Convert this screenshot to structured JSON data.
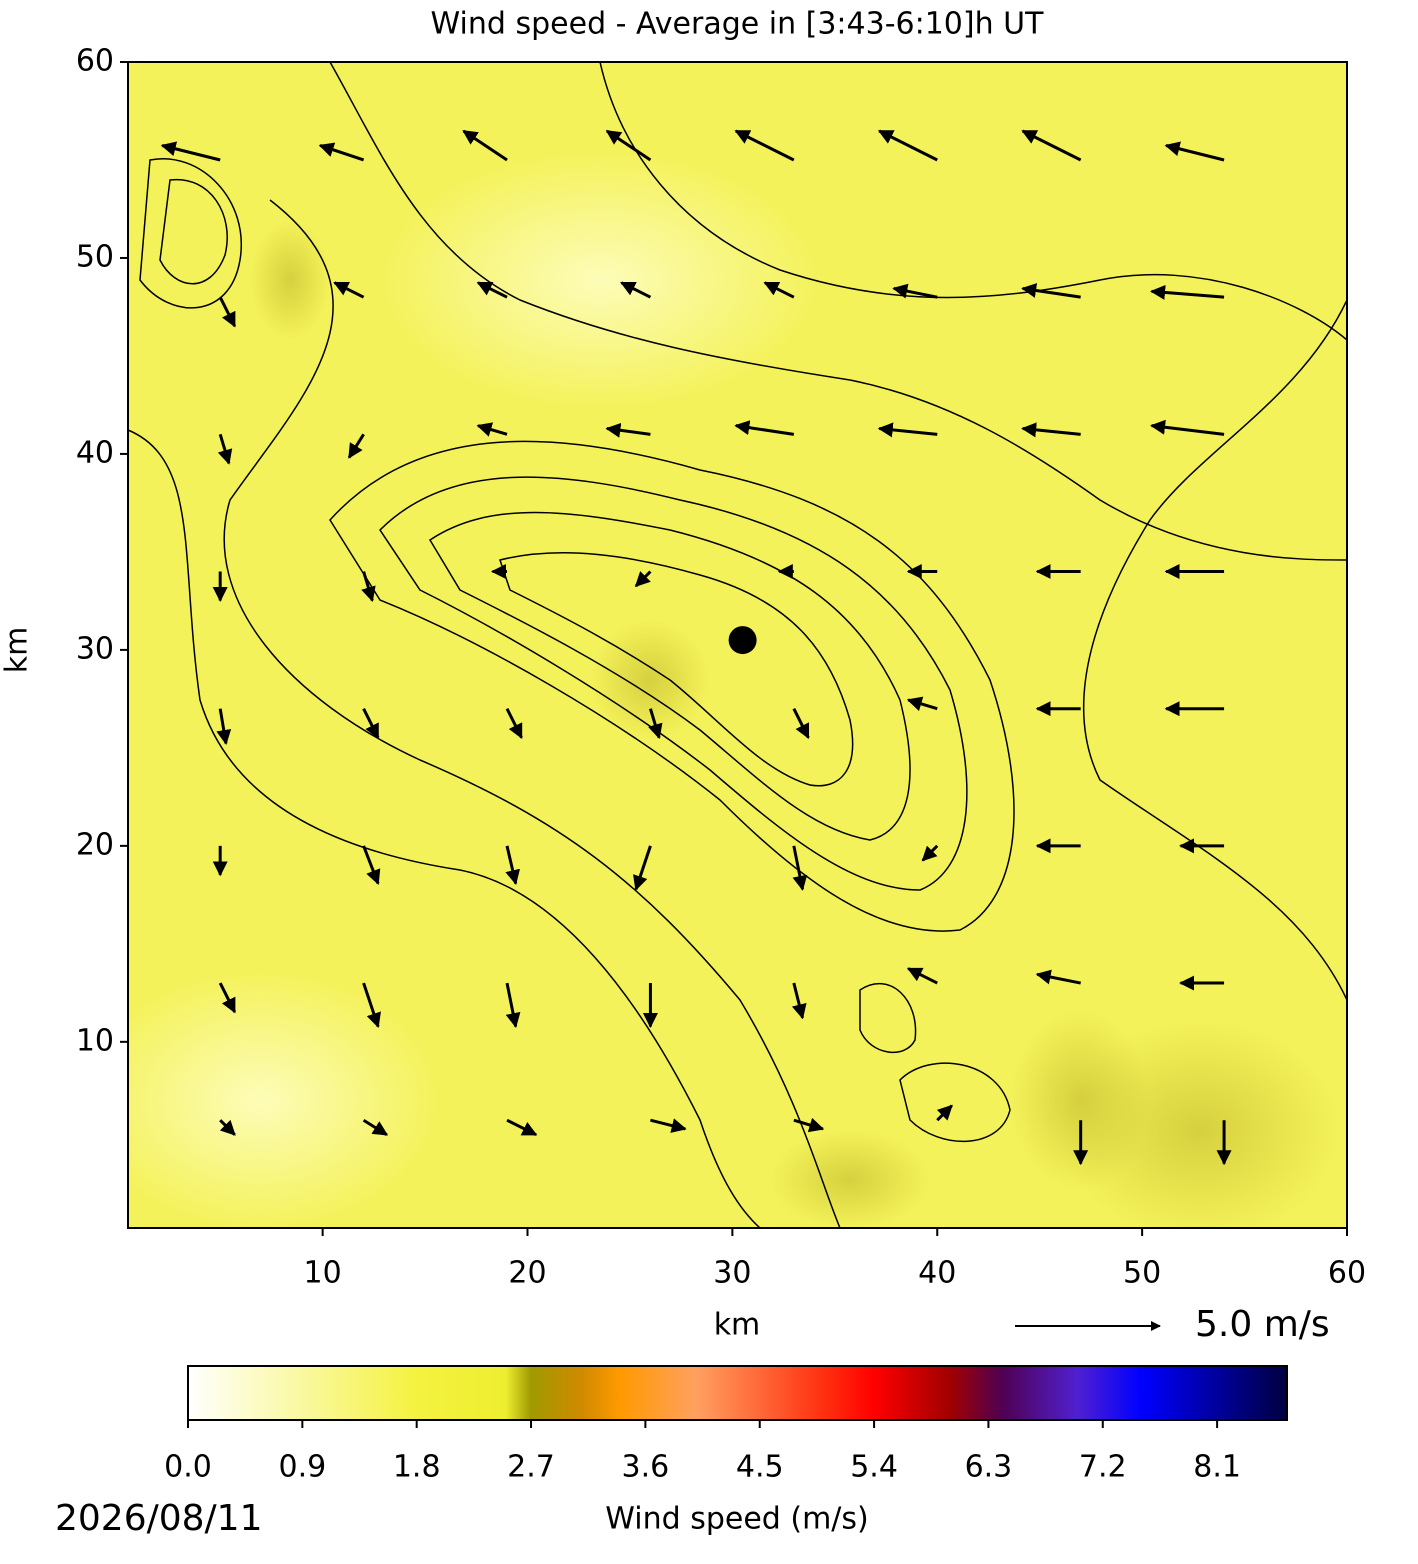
{
  "chart_data": {
    "type": "quiver",
    "title": "Wind speed - Average in [3:43-6:10]h UT",
    "x_label": "km",
    "y_label": "km",
    "xlim": [
      0.5,
      60
    ],
    "ylim": [
      0.5,
      60
    ],
    "xticks": [
      10,
      20,
      30,
      40,
      50,
      60
    ],
    "yticks": [
      10,
      20,
      30,
      40,
      50,
      60
    ],
    "grid_x": [
      5,
      12,
      19,
      26,
      33,
      40,
      47,
      54
    ],
    "grid_y": [
      55,
      48,
      41,
      34,
      27,
      20,
      13,
      6
    ],
    "u": [
      [
        -2,
        -1.5,
        -1.5,
        -1.5,
        -2,
        -2,
        -2,
        -2
      ],
      [
        0.5,
        -1,
        -1,
        -1,
        -1,
        -1.5,
        -2,
        -2.5
      ],
      [
        0.3,
        -0.5,
        -1,
        -1.5,
        -2,
        -2,
        -2,
        -2.5
      ],
      [
        0,
        0.3,
        -0.5,
        -0.5,
        -0.5,
        -1,
        -1.5,
        -2
      ],
      [
        0.2,
        0.5,
        0.5,
        0.3,
        0.5,
        -1,
        -1.5,
        -2
      ],
      [
        0,
        0.5,
        0.3,
        -0.5,
        0.3,
        -0.5,
        -1.5,
        -1.5
      ],
      [
        0.5,
        0.5,
        0.3,
        0,
        0.3,
        -1,
        -1.5,
        -1.5
      ],
      [
        0.5,
        0.8,
        1,
        1.2,
        1,
        0.5,
        0,
        0
      ]
    ],
    "v": [
      [
        0.5,
        0.5,
        1,
        1,
        1,
        1,
        1,
        0.5
      ],
      [
        -1,
        0.5,
        0.5,
        0.5,
        0.5,
        0.3,
        0.3,
        0.2
      ],
      [
        -1,
        -0.8,
        0.3,
        0.2,
        0.3,
        0.2,
        0.2,
        0.3
      ],
      [
        -1,
        -1,
        0,
        -0.5,
        0,
        0,
        0,
        0
      ],
      [
        -1.2,
        -1,
        -1,
        -1,
        -1,
        0.3,
        0,
        0
      ],
      [
        -1,
        -1.3,
        -1.3,
        -1.5,
        -1.5,
        -0.5,
        0,
        0
      ],
      [
        -1,
        -1.5,
        -1.5,
        -1.5,
        -1.2,
        0.5,
        0.3,
        0
      ],
      [
        -0.5,
        -0.5,
        -0.5,
        -0.3,
        -0.3,
        0.5,
        -1.5,
        -1.5
      ]
    ],
    "arrow_color": "#000000",
    "field_color": "#f4f25a",
    "site": {
      "x": 30.5,
      "y": 30.5
    },
    "quiver_key": {
      "value": 5.0,
      "label": "5.0 m/s"
    },
    "colorbar": {
      "label": "Wind speed (m/s)",
      "lim": [
        0,
        8.65
      ],
      "ticks": [
        0.0,
        0.9,
        1.8,
        2.7,
        3.6,
        4.5,
        5.4,
        6.3,
        7.2,
        8.1
      ],
      "tick_labels": [
        "0.0",
        "0.9",
        "1.8",
        "2.7",
        "3.6",
        "4.5",
        "5.4",
        "6.3",
        "7.2",
        "8.1"
      ],
      "colormap": [
        [
          0,
          "#ffffff"
        ],
        [
          1.8,
          "#f4f240"
        ],
        [
          2.5,
          "#eeee30"
        ],
        [
          2.7,
          "#a09a00"
        ],
        [
          3.1,
          "#d08a00"
        ],
        [
          3.4,
          "#ff9a00"
        ],
        [
          4.0,
          "#ffa060"
        ],
        [
          5.0,
          "#ff3010"
        ],
        [
          5.4,
          "#ff0000"
        ],
        [
          6.0,
          "#a00000"
        ],
        [
          6.4,
          "#500050"
        ],
        [
          7.0,
          "#5020d0"
        ],
        [
          7.5,
          "#0000ff"
        ],
        [
          8.65,
          "#000040"
        ]
      ]
    },
    "date": "2026/08/11"
  }
}
